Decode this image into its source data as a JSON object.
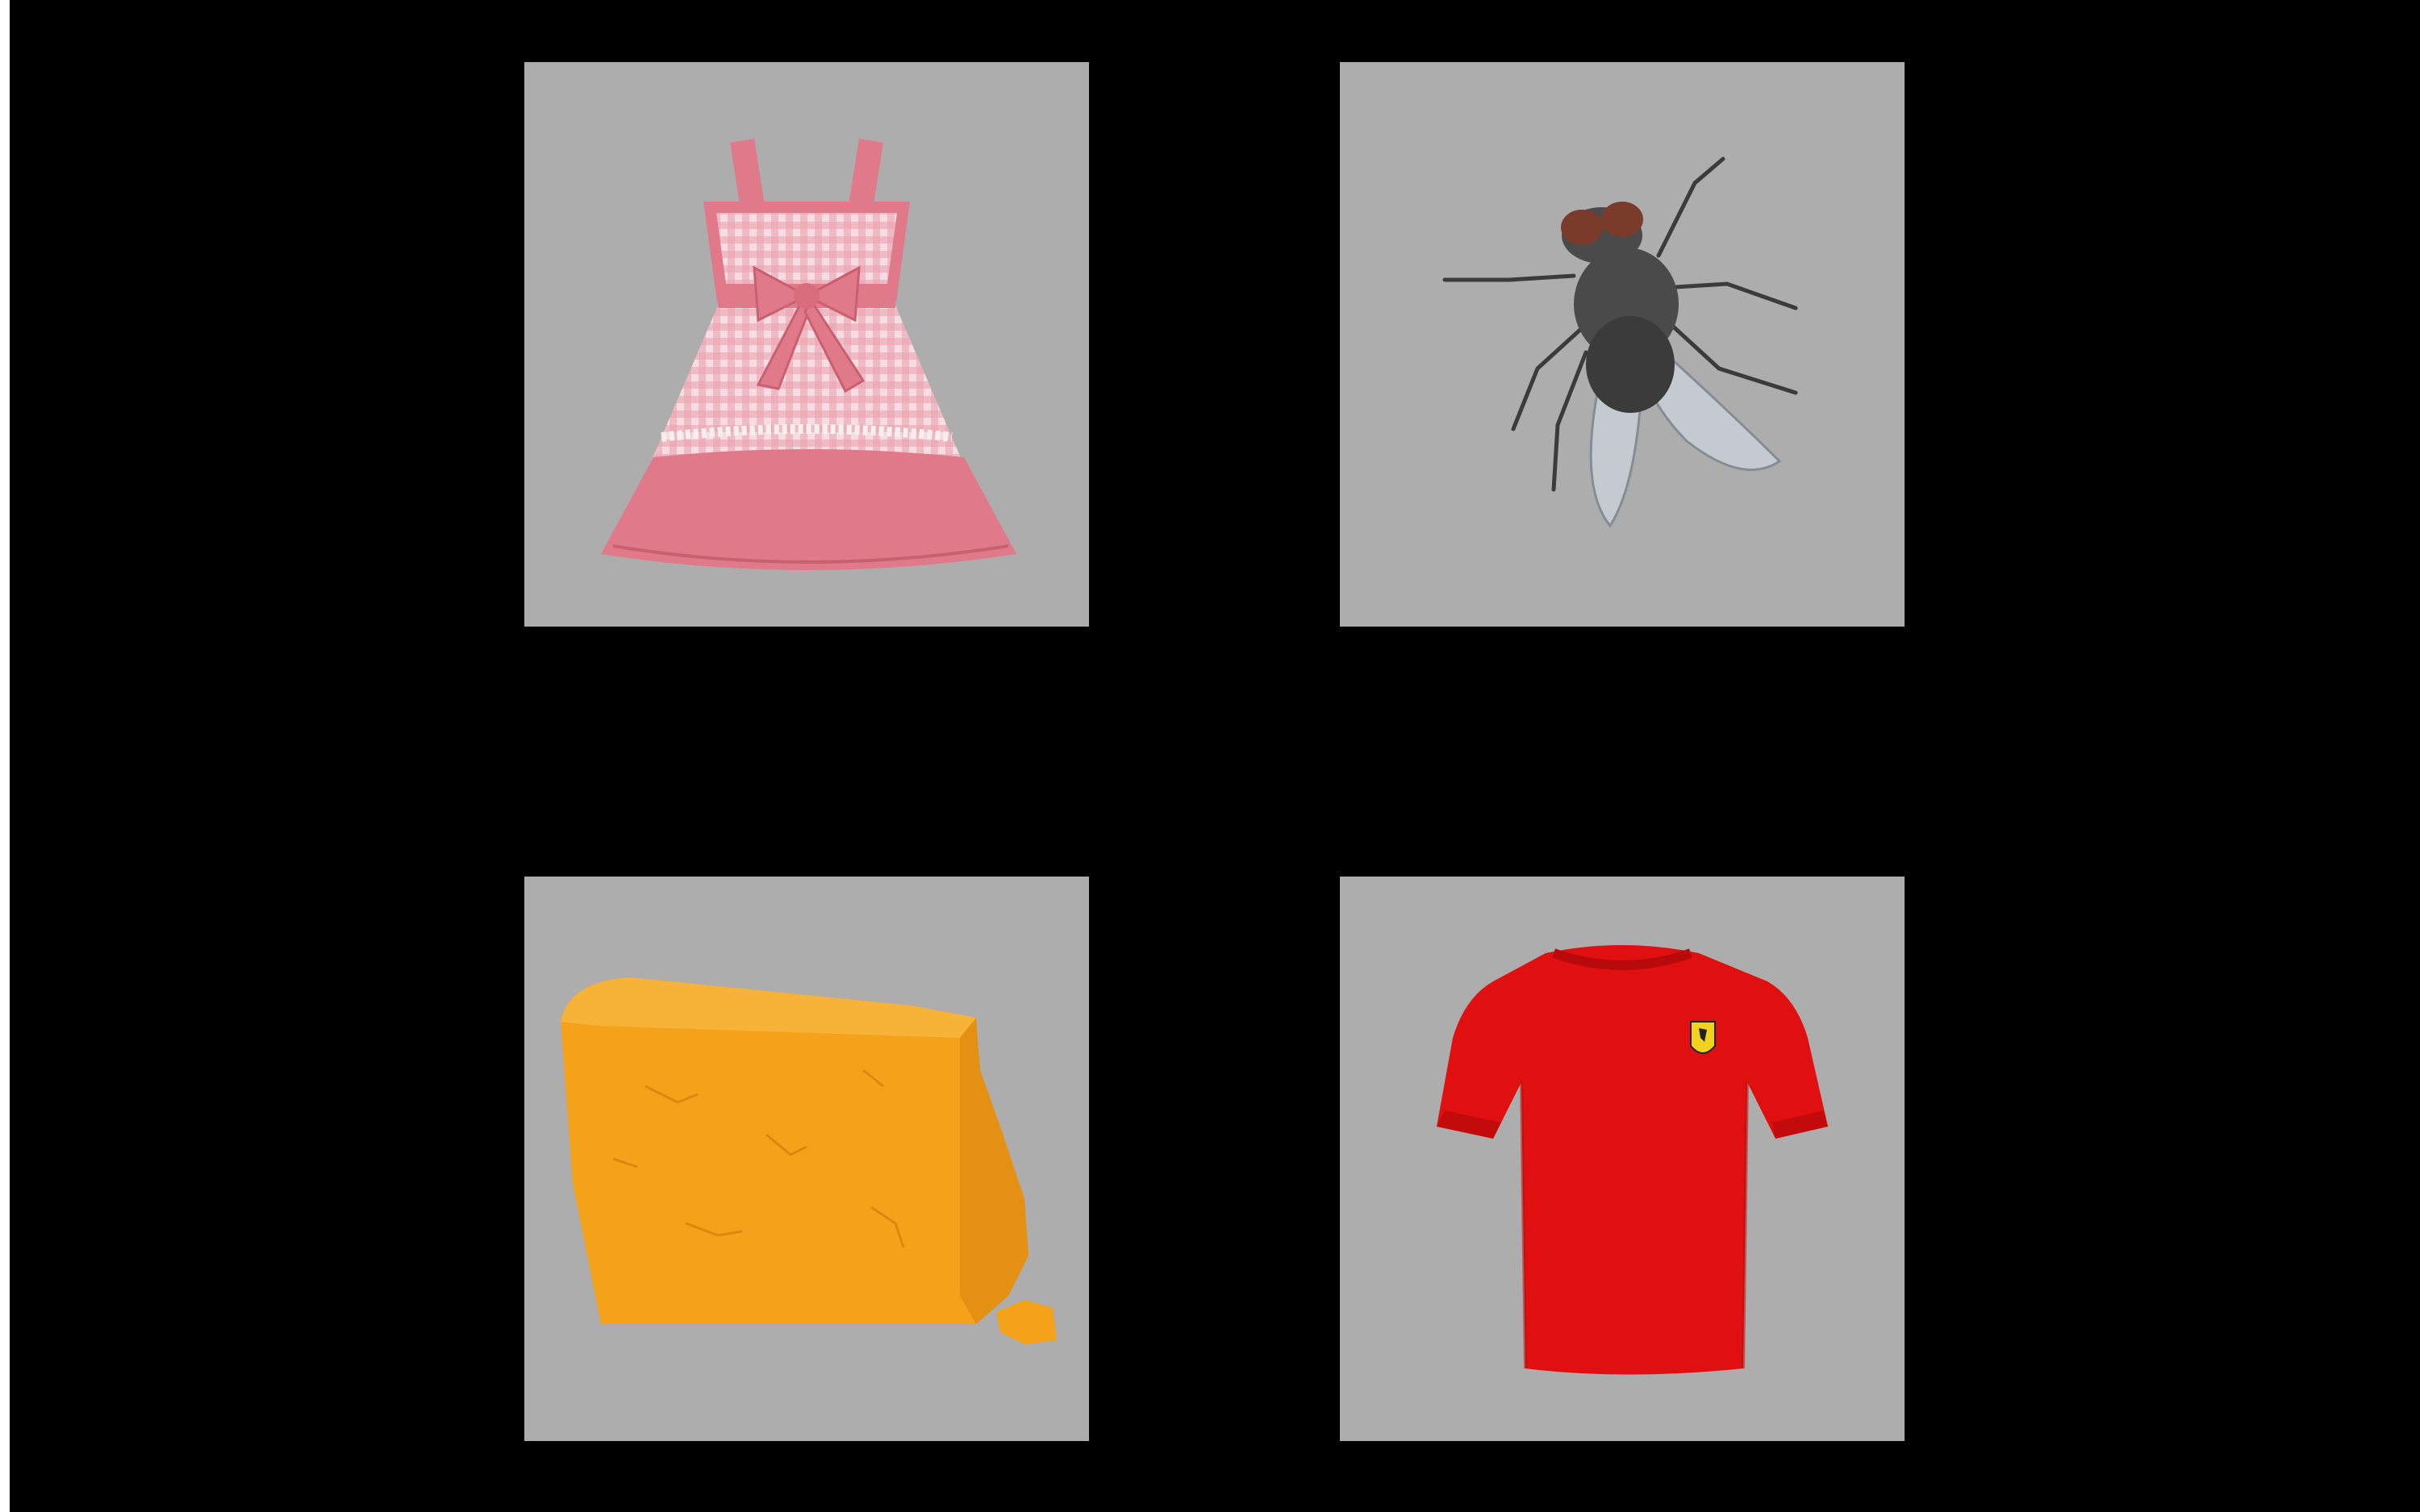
{
  "colors": {
    "background": "#000000",
    "tile_background": "#adadad",
    "dress_pink": "#e07a8a",
    "dress_light": "#f4c7cf",
    "fly_body": "#3b3b3b",
    "fly_wing": "#c9d0d6",
    "fly_eye": "#7a3b2a",
    "cheese_orange": "#f5a21b",
    "cheese_dark": "#e08c10",
    "shirt_red": "#e01010",
    "shirt_dark": "#b80a0a",
    "badge_yellow": "#f2d21c"
  },
  "tiles": [
    {
      "id": "dress",
      "icon": "dress-image"
    },
    {
      "id": "fly",
      "icon": "fly-image"
    },
    {
      "id": "cheese",
      "icon": "cheese-image"
    },
    {
      "id": "shirt",
      "icon": "tshirt-image"
    }
  ]
}
